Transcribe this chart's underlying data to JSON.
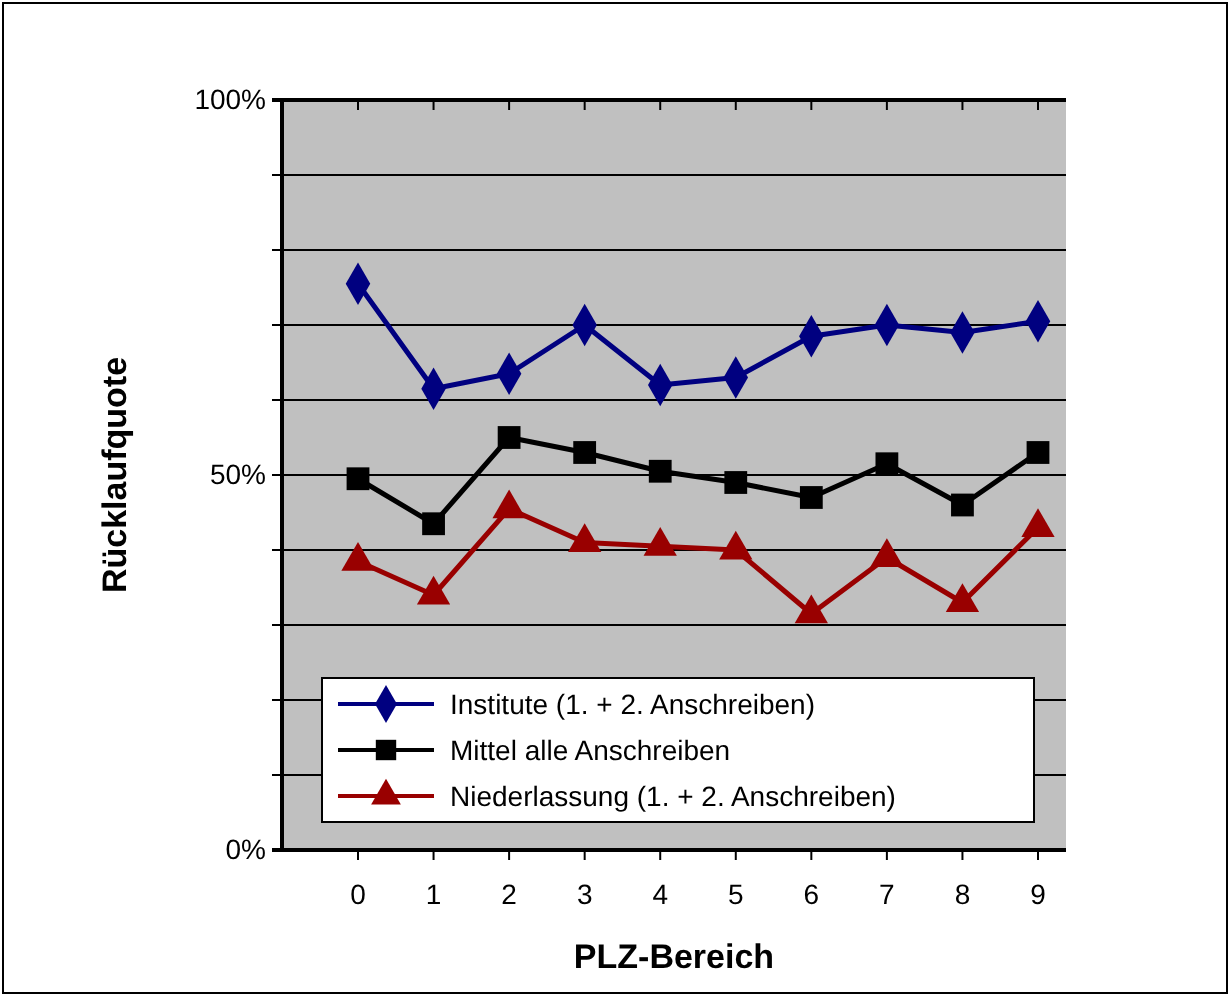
{
  "chart_data": {
    "type": "line",
    "xlabel": "PLZ-Bereich",
    "ylabel": "Rücklaufquote",
    "categories": [
      "0",
      "1",
      "2",
      "3",
      "4",
      "5",
      "6",
      "7",
      "8",
      "9"
    ],
    "ylim": [
      0,
      100
    ],
    "yticks": [
      {
        "value": 0,
        "label": "0%"
      },
      {
        "value": 10,
        "label": null
      },
      {
        "value": 20,
        "label": null
      },
      {
        "value": 30,
        "label": null
      },
      {
        "value": 40,
        "label": null
      },
      {
        "value": 50,
        "label": "50%"
      },
      {
        "value": 60,
        "label": null
      },
      {
        "value": 70,
        "label": null
      },
      {
        "value": 80,
        "label": null
      },
      {
        "value": 90,
        "label": null
      },
      {
        "value": 100,
        "label": "100%"
      }
    ],
    "grid": "y",
    "legend": "bottom",
    "series": [
      {
        "name": "Institute (1. + 2. Anschreiben)",
        "color": "#000080",
        "marker": "diamond",
        "values": [
          75.5,
          61.5,
          63.5,
          70,
          62,
          63,
          68.5,
          70,
          69,
          70.5
        ]
      },
      {
        "name": "Mittel alle Anschreiben",
        "color": "#000000",
        "marker": "square",
        "values": [
          49.5,
          43.5,
          55,
          53,
          50.5,
          49,
          47,
          51.5,
          46,
          53
        ]
      },
      {
        "name": "Niederlassung (1. + 2. Anschreiben)",
        "color": "#990000",
        "marker": "triangle",
        "values": [
          38.5,
          34,
          45.5,
          41,
          40.5,
          40,
          31.5,
          39,
          33,
          43
        ]
      }
    ]
  }
}
